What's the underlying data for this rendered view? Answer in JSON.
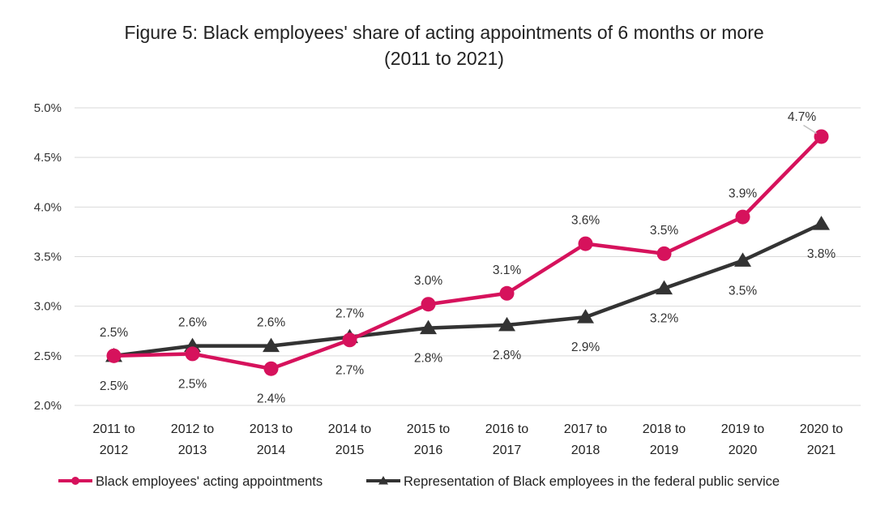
{
  "chart_data": {
    "type": "line",
    "title_line1": "Figure 5: Black employees' share of acting appointments of 6 months or more",
    "title_line2": "(2011 to 2021)",
    "xlabel": "",
    "ylabel": "",
    "ylim": [
      2.0,
      5.0
    ],
    "yticks": [
      {
        "value": 2.0,
        "label": "2.0%"
      },
      {
        "value": 2.5,
        "label": "2.5%"
      },
      {
        "value": 3.0,
        "label": "3.0%"
      },
      {
        "value": 3.5,
        "label": "3.5%"
      },
      {
        "value": 4.0,
        "label": "4.0%"
      },
      {
        "value": 4.5,
        "label": "4.5%"
      },
      {
        "value": 5.0,
        "label": "5.0%"
      }
    ],
    "grid": true,
    "legend_position": "bottom",
    "categories": [
      [
        "2011 to",
        "2012"
      ],
      [
        "2012 to",
        "2013"
      ],
      [
        "2013 to",
        "2014"
      ],
      [
        "2014 to",
        "2015"
      ],
      [
        "2015 to",
        "2016"
      ],
      [
        "2016 to",
        "2017"
      ],
      [
        "2017 to",
        "2018"
      ],
      [
        "2018 to",
        "2019"
      ],
      [
        "2019 to",
        "2020"
      ],
      [
        "2020 to",
        "2021"
      ]
    ],
    "series": [
      {
        "name": "Black employees' acting appointments",
        "color": "#d6125c",
        "marker": "circle",
        "values": [
          2.5,
          2.52,
          2.37,
          2.66,
          3.02,
          3.13,
          3.63,
          3.53,
          3.9,
          4.71
        ],
        "labels": [
          "2.5%",
          "2.5%",
          "2.4%",
          "2.7%",
          "3.0%",
          "3.1%",
          "3.6%",
          "3.5%",
          "3.9%",
          "4.7%"
        ],
        "label_pos": [
          "above",
          "below",
          "below",
          "below",
          "above",
          "above",
          "above",
          "above",
          "above",
          "above"
        ]
      },
      {
        "name": "Representation of Black employees in the federal public service",
        "color": "#333333",
        "marker": "triangle",
        "values": [
          2.5,
          2.6,
          2.6,
          2.69,
          2.78,
          2.81,
          2.89,
          3.18,
          3.46,
          3.83
        ],
        "labels": [
          "2.5%",
          "2.6%",
          "2.6%",
          "2.7%",
          "2.8%",
          "2.8%",
          "2.9%",
          "3.2%",
          "3.5%",
          "3.8%"
        ],
        "label_pos": [
          "below",
          "above",
          "above",
          "above",
          "below",
          "below",
          "below",
          "below",
          "below",
          "below"
        ]
      }
    ]
  }
}
